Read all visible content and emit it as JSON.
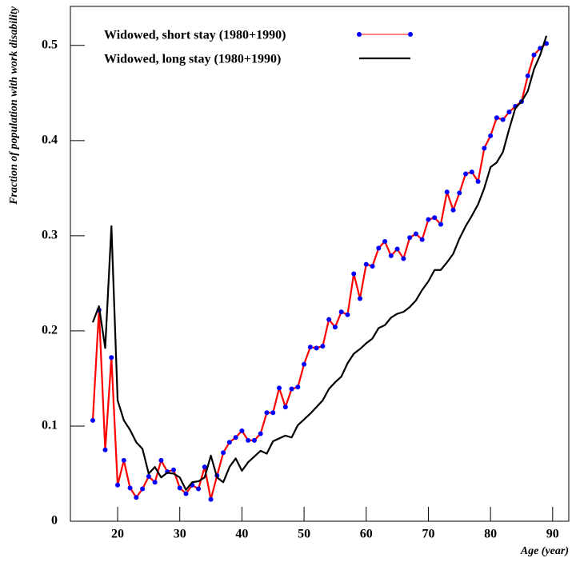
{
  "chart_data": {
    "type": "line",
    "x_label": "Age (year)",
    "y_label": "Fraction of population with work disability",
    "x": [
      16,
      17,
      18,
      19,
      20,
      21,
      22,
      23,
      24,
      25,
      26,
      27,
      28,
      29,
      30,
      31,
      32,
      33,
      34,
      35,
      36,
      37,
      38,
      39,
      40,
      41,
      42,
      43,
      44,
      45,
      46,
      47,
      48,
      49,
      50,
      51,
      52,
      53,
      54,
      55,
      56,
      57,
      58,
      59,
      60,
      61,
      62,
      63,
      64,
      65,
      66,
      67,
      68,
      69,
      70,
      71,
      72,
      73,
      74,
      75,
      76,
      77,
      78,
      79,
      80,
      81,
      82,
      83,
      84,
      85,
      86,
      87,
      88,
      89
    ],
    "series": [
      {
        "name": "Widowed, short stay (1980+1990)",
        "color": "#ff0000",
        "marker_color": "#0000ff",
        "values": [
          0.106,
          0.222,
          0.075,
          0.172,
          0.038,
          0.064,
          0.035,
          0.025,
          0.034,
          0.047,
          0.041,
          0.064,
          0.052,
          0.054,
          0.035,
          0.029,
          0.038,
          0.034,
          0.057,
          0.023,
          0.048,
          0.072,
          0.083,
          0.088,
          0.095,
          0.085,
          0.085,
          0.092,
          0.114,
          0.114,
          0.14,
          0.12,
          0.139,
          0.141,
          0.165,
          0.183,
          0.182,
          0.184,
          0.212,
          0.204,
          0.22,
          0.217,
          0.26,
          0.234,
          0.27,
          0.268,
          0.287,
          0.294,
          0.279,
          0.286,
          0.276,
          0.298,
          0.302,
          0.296,
          0.317,
          0.319,
          0.312,
          0.346,
          0.327,
          0.345,
          0.365,
          0.367,
          0.357,
          0.392,
          0.405,
          0.424,
          0.422,
          0.43,
          0.436,
          0.441,
          0.468,
          0.49,
          0.497,
          0.502
        ]
      },
      {
        "name": "Widowed, long stay (1980+1990)",
        "color": "#000000",
        "values": [
          0.209,
          0.226,
          0.182,
          0.31,
          0.127,
          0.106,
          0.096,
          0.083,
          0.076,
          0.05,
          0.057,
          0.046,
          0.051,
          0.05,
          0.046,
          0.033,
          0.041,
          0.042,
          0.046,
          0.069,
          0.046,
          0.041,
          0.057,
          0.066,
          0.053,
          0.062,
          0.068,
          0.074,
          0.071,
          0.084,
          0.087,
          0.09,
          0.088,
          0.101,
          0.107,
          0.113,
          0.12,
          0.127,
          0.139,
          0.146,
          0.152,
          0.166,
          0.176,
          0.181,
          0.187,
          0.192,
          0.203,
          0.206,
          0.214,
          0.218,
          0.22,
          0.225,
          0.232,
          0.243,
          0.252,
          0.264,
          0.264,
          0.272,
          0.281,
          0.297,
          0.31,
          0.321,
          0.333,
          0.35,
          0.372,
          0.377,
          0.388,
          0.412,
          0.434,
          0.441,
          0.452,
          0.475,
          0.49,
          0.51
        ]
      }
    ],
    "xlim": [
      12.4,
      92.6
    ],
    "xticks": [
      20,
      30,
      40,
      50,
      60,
      70,
      80,
      90
    ],
    "ylim": [
      0,
      0.541
    ],
    "yticks": [
      0,
      0.1,
      0.2,
      0.3,
      0.4,
      0.5
    ],
    "legend": "upper left"
  }
}
